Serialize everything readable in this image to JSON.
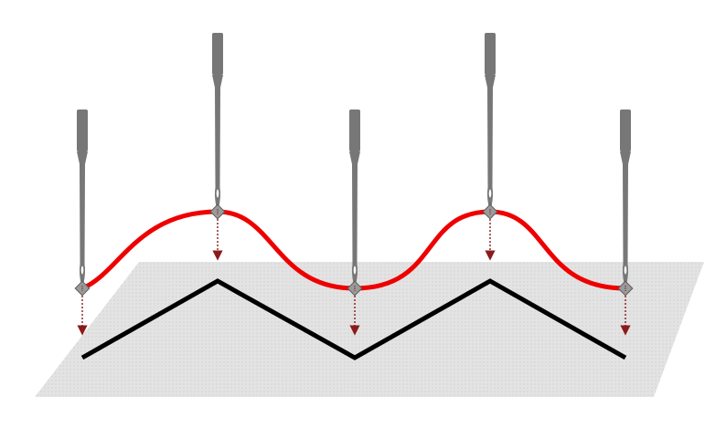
{
  "colors": {
    "background": "#ffffff",
    "fabric_fill": "#e3e3e3",
    "fabric_dots": "#c9c9c9",
    "needle": "#777777",
    "needle_eye": "#ffffff",
    "thread": "#ee0000",
    "stitch": "#000000",
    "arrow": "#8b1a1a",
    "marker_fill": "#9a9a9a",
    "marker_stroke": "#5a5a5a"
  },
  "icons": {
    "needle": "needle-icon",
    "marker": "thread-marker-icon",
    "arrow": "drop-arrow-icon"
  },
  "needles": [
    {
      "id": "needle-1",
      "position": "low"
    },
    {
      "id": "needle-2",
      "position": "high"
    },
    {
      "id": "needle-3",
      "position": "low"
    },
    {
      "id": "needle-4",
      "position": "high"
    },
    {
      "id": "needle-5",
      "position": "low"
    }
  ]
}
